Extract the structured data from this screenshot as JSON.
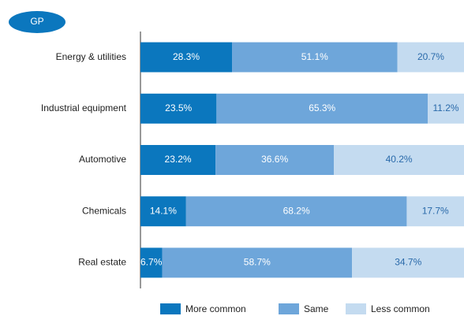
{
  "chart_data": {
    "type": "stacked-bar-horizontal",
    "tag": "GP",
    "categories": [
      "Energy & utilities",
      "Industrial equipment",
      "Automotive",
      "Chemicals",
      "Real estate"
    ],
    "series": [
      {
        "name": "More common",
        "color": "#0b77be",
        "text_color": "#ffffff",
        "values": [
          28.3,
          23.5,
          23.2,
          14.1,
          6.7
        ],
        "value_labels": [
          "28.3%",
          "23.5%",
          "23.2%",
          "14.1%",
          "6.7%"
        ]
      },
      {
        "name": "Same",
        "color": "#6ea6da",
        "text_color": "#ffffff",
        "values": [
          51.1,
          65.3,
          36.6,
          68.2,
          58.7
        ],
        "value_labels": [
          "51.1%",
          "65.3%",
          "36.6%",
          "68.2%",
          "58.7%"
        ]
      },
      {
        "name": "Less common",
        "color": "#c4dbf0",
        "text_color": "#2a6aaa",
        "values": [
          20.7,
          11.2,
          40.2,
          17.7,
          34.7
        ],
        "value_labels": [
          "20.7%",
          "11.2%",
          "40.2%",
          "17.7%",
          "34.7%"
        ]
      }
    ],
    "xlim": [
      0,
      100
    ],
    "legend": "bottom"
  }
}
